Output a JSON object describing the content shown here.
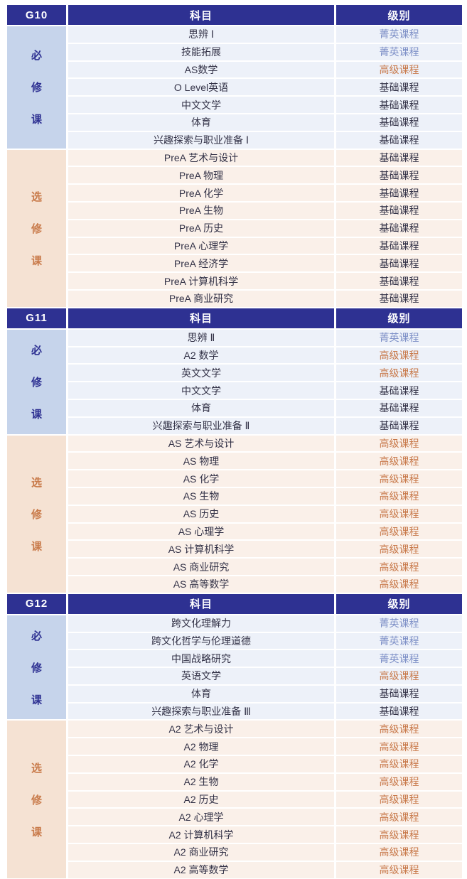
{
  "colors": {
    "header_bg": "#2E3192",
    "header_text": "#FFFFFF",
    "required_side_bg": "#C6D4EB",
    "required_side_text": "#2E3192",
    "required_row_bg": "#EDF1F9",
    "elective_side_bg": "#F5E2D3",
    "elective_side_text": "#C97B4B",
    "elective_row_bg": "#FAF0E9",
    "elite_level_text": "#7E90C7",
    "advanced_level_text": "#C8794A",
    "basic_level_text": "#333247"
  },
  "sections": [
    {
      "grade": "G10",
      "columns": {
        "subject": "科目",
        "level": "级别"
      },
      "bands": [
        {
          "type": "required",
          "category": "必修课",
          "category_chars": [
            "必",
            "修",
            "课"
          ],
          "rows": [
            {
              "subject": "思辨 Ⅰ",
              "level": "菁英课程",
              "level_type": "elite"
            },
            {
              "subject": "技能拓展",
              "level": "菁英课程",
              "level_type": "elite"
            },
            {
              "subject": "AS数学",
              "level": "高级课程",
              "level_type": "advanced"
            },
            {
              "subject": "O Level英语",
              "level": "基础课程",
              "level_type": "basic"
            },
            {
              "subject": "中文文学",
              "level": "基础课程",
              "level_type": "basic"
            },
            {
              "subject": "体育",
              "level": "基础课程",
              "level_type": "basic"
            },
            {
              "subject": "兴趣探索与职业准备 Ⅰ",
              "level": "基础课程",
              "level_type": "basic"
            }
          ]
        },
        {
          "type": "elective",
          "category": "选修课",
          "category_chars": [
            "选",
            "修",
            "课"
          ],
          "rows": [
            {
              "subject": "PreA 艺术与设计",
              "level": "基础课程",
              "level_type": "basic"
            },
            {
              "subject": "PreA 物理",
              "level": "基础课程",
              "level_type": "basic"
            },
            {
              "subject": "PreA 化学",
              "level": "基础课程",
              "level_type": "basic"
            },
            {
              "subject": "PreA 生物",
              "level": "基础课程",
              "level_type": "basic"
            },
            {
              "subject": "PreA 历史",
              "level": "基础课程",
              "level_type": "basic"
            },
            {
              "subject": "PreA 心理学",
              "level": "基础课程",
              "level_type": "basic"
            },
            {
              "subject": "PreA 经济学",
              "level": "基础课程",
              "level_type": "basic"
            },
            {
              "subject": "PreA 计算机科学",
              "level": "基础课程",
              "level_type": "basic"
            },
            {
              "subject": "PreA 商业研究",
              "level": "基础课程",
              "level_type": "basic"
            }
          ]
        }
      ]
    },
    {
      "grade": "G11",
      "columns": {
        "subject": "科目",
        "level": "级别"
      },
      "bands": [
        {
          "type": "required",
          "category": "必修课",
          "category_chars": [
            "必",
            "修",
            "课"
          ],
          "rows": [
            {
              "subject": "思辨 Ⅱ",
              "level": "菁英课程",
              "level_type": "elite"
            },
            {
              "subject": "A2 数学",
              "level": "高级课程",
              "level_type": "advanced"
            },
            {
              "subject": "英文文学",
              "level": "高级课程",
              "level_type": "advanced"
            },
            {
              "subject": "中文文学",
              "level": "基础课程",
              "level_type": "basic"
            },
            {
              "subject": "体育",
              "level": "基础课程",
              "level_type": "basic"
            },
            {
              "subject": "兴趣探索与职业准备 Ⅱ",
              "level": "基础课程",
              "level_type": "basic"
            }
          ]
        },
        {
          "type": "elective",
          "category": "选修课",
          "category_chars": [
            "选",
            "修",
            "课"
          ],
          "rows": [
            {
              "subject": "AS 艺术与设计",
              "level": "高级课程",
              "level_type": "advanced"
            },
            {
              "subject": "AS 物理",
              "level": "高级课程",
              "level_type": "advanced"
            },
            {
              "subject": "AS 化学",
              "level": "高级课程",
              "level_type": "advanced"
            },
            {
              "subject": "AS 生物",
              "level": "高级课程",
              "level_type": "advanced"
            },
            {
              "subject": "AS 历史",
              "level": "高级课程",
              "level_type": "advanced"
            },
            {
              "subject": "AS 心理学",
              "level": "高级课程",
              "level_type": "advanced"
            },
            {
              "subject": "AS 计算机科学",
              "level": "高级课程",
              "level_type": "advanced"
            },
            {
              "subject": "AS 商业研究",
              "level": "高级课程",
              "level_type": "advanced"
            },
            {
              "subject": "AS 高等数学",
              "level": "高级课程",
              "level_type": "advanced"
            }
          ]
        }
      ]
    },
    {
      "grade": "G12",
      "columns": {
        "subject": "科目",
        "level": "级别"
      },
      "bands": [
        {
          "type": "required",
          "category": "必修课",
          "category_chars": [
            "必",
            "修",
            "课"
          ],
          "rows": [
            {
              "subject": "跨文化理解力",
              "level": "菁英课程",
              "level_type": "elite"
            },
            {
              "subject": "跨文化哲学与伦理道德",
              "level": "菁英课程",
              "level_type": "elite"
            },
            {
              "subject": "中国战略研究",
              "level": "菁英课程",
              "level_type": "elite"
            },
            {
              "subject": "英语文学",
              "level": "高级课程",
              "level_type": "advanced"
            },
            {
              "subject": "体育",
              "level": "基础课程",
              "level_type": "basic"
            },
            {
              "subject": "兴趣探索与职业准备 Ⅲ",
              "level": "基础课程",
              "level_type": "basic"
            }
          ]
        },
        {
          "type": "elective",
          "category": "选修课",
          "category_chars": [
            "选",
            "修",
            "课"
          ],
          "rows": [
            {
              "subject": "A2 艺术与设计",
              "level": "高级课程",
              "level_type": "advanced"
            },
            {
              "subject": "A2 物理",
              "level": "高级课程",
              "level_type": "advanced"
            },
            {
              "subject": "A2 化学",
              "level": "高级课程",
              "level_type": "advanced"
            },
            {
              "subject": "A2 生物",
              "level": "高级课程",
              "level_type": "advanced"
            },
            {
              "subject": "A2 历史",
              "level": "高级课程",
              "level_type": "advanced"
            },
            {
              "subject": "A2 心理学",
              "level": "高级课程",
              "level_type": "advanced"
            },
            {
              "subject": "A2 计算机科学",
              "level": "高级课程",
              "level_type": "advanced"
            },
            {
              "subject": "A2 商业研究",
              "level": "高级课程",
              "level_type": "advanced"
            },
            {
              "subject": "A2 高等数学",
              "level": "高级课程",
              "level_type": "advanced"
            }
          ]
        }
      ]
    }
  ]
}
